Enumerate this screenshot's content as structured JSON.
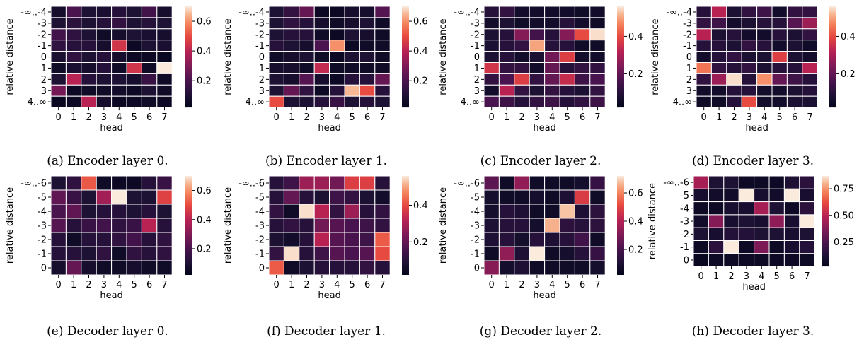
{
  "chart_data": [
    {
      "type": "heatmap",
      "caption": "(a) Encoder layer 0.",
      "xlabel": "head",
      "ylabel": "relative distance",
      "x": [
        "0",
        "1",
        "2",
        "3",
        "4",
        "5",
        "6",
        "7"
      ],
      "y": [
        "-∞..-4",
        "-3",
        "-2",
        "-1",
        "0",
        "1",
        "2",
        "3",
        "4..∞"
      ],
      "colorbar": {
        "ticks": [
          "0.2",
          "0.4",
          "0.6"
        ],
        "tick_values": [
          0.2,
          0.4,
          0.6
        ],
        "vmin": 0.02,
        "vmax": 0.7
      },
      "values": [
        [
          0.08,
          0.2,
          0.1,
          0.09,
          0.12,
          0.1,
          0.18,
          0.08
        ],
        [
          0.1,
          0.13,
          0.1,
          0.12,
          0.15,
          0.1,
          0.12,
          0.1
        ],
        [
          0.18,
          0.14,
          0.1,
          0.06,
          0.08,
          0.1,
          0.09,
          0.08
        ],
        [
          0.14,
          0.12,
          0.12,
          0.08,
          0.45,
          0.05,
          0.1,
          0.09
        ],
        [
          0.09,
          0.14,
          0.1,
          0.12,
          0.08,
          0.05,
          0.05,
          0.04
        ],
        [
          0.06,
          0.09,
          0.08,
          0.12,
          0.06,
          0.45,
          0.06,
          0.7
        ],
        [
          0.1,
          0.4,
          0.12,
          0.1,
          0.1,
          0.08,
          0.16,
          0.06
        ],
        [
          0.28,
          0.05,
          0.06,
          0.06,
          0.07,
          0.05,
          0.1,
          0.06
        ],
        [
          0.04,
          0.05,
          0.4,
          0.08,
          0.05,
          0.05,
          0.06,
          0.05
        ]
      ]
    },
    {
      "type": "heatmap",
      "caption": "(b) Encoder layer 1.",
      "xlabel": "head",
      "ylabel": "relative distance",
      "x": [
        "0",
        "1",
        "2",
        "3",
        "4",
        "5",
        "6",
        "7"
      ],
      "y": [
        "-∞..-4",
        "-3",
        "-2",
        "-1",
        "0",
        "1",
        "2",
        "3",
        "4..∞"
      ],
      "colorbar": {
        "ticks": [
          "0.2",
          "0.4",
          "0.6"
        ],
        "tick_values": [
          0.2,
          0.4,
          0.6
        ],
        "vmin": 0.02,
        "vmax": 0.7
      },
      "values": [
        [
          0.1,
          0.15,
          0.25,
          0.05,
          0.05,
          0.08,
          0.08,
          0.22
        ],
        [
          0.1,
          0.14,
          0.12,
          0.08,
          0.06,
          0.08,
          0.1,
          0.06
        ],
        [
          0.1,
          0.12,
          0.12,
          0.06,
          0.05,
          0.1,
          0.08,
          0.06
        ],
        [
          0.12,
          0.1,
          0.08,
          0.2,
          0.6,
          0.05,
          0.06,
          0.06
        ],
        [
          0.06,
          0.08,
          0.1,
          0.06,
          0.05,
          0.1,
          0.1,
          0.06
        ],
        [
          0.08,
          0.08,
          0.06,
          0.42,
          0.06,
          0.06,
          0.06,
          0.06
        ],
        [
          0.1,
          0.08,
          0.22,
          0.08,
          0.05,
          0.12,
          0.12,
          0.25
        ],
        [
          0.1,
          0.25,
          0.14,
          0.05,
          0.12,
          0.65,
          0.5,
          0.12
        ],
        [
          0.5,
          0.1,
          0.1,
          0.12,
          0.16,
          0.1,
          0.12,
          0.1
        ]
      ]
    },
    {
      "type": "heatmap",
      "caption": "(c) Encoder layer 2.",
      "xlabel": "head",
      "ylabel": "relative distance",
      "x": [
        "0",
        "1",
        "2",
        "3",
        "4",
        "5",
        "6",
        "7"
      ],
      "y": [
        "-∞..-4",
        "-3",
        "-2",
        "-1",
        "0",
        "1",
        "2",
        "3",
        "4..∞"
      ],
      "colorbar": {
        "ticks": [
          "0.2",
          "0.4"
        ],
        "tick_values": [
          0.2,
          0.4
        ],
        "vmin": 0.02,
        "vmax": 0.56
      },
      "values": [
        [
          0.1,
          0.12,
          0.06,
          0.06,
          0.06,
          0.06,
          0.05,
          0.06
        ],
        [
          0.06,
          0.08,
          0.05,
          0.06,
          0.06,
          0.1,
          0.06,
          0.05
        ],
        [
          0.08,
          0.1,
          0.25,
          0.15,
          0.1,
          0.25,
          0.4,
          0.55
        ],
        [
          0.08,
          0.1,
          0.12,
          0.5,
          0.1,
          0.1,
          0.05,
          0.05
        ],
        [
          0.08,
          0.1,
          0.06,
          0.08,
          0.22,
          0.38,
          0.06,
          0.06
        ],
        [
          0.36,
          0.12,
          0.12,
          0.06,
          0.2,
          0.1,
          0.12,
          0.12
        ],
        [
          0.12,
          0.16,
          0.38,
          0.12,
          0.2,
          0.34,
          0.14,
          0.16
        ],
        [
          0.06,
          0.32,
          0.12,
          0.08,
          0.12,
          0.1,
          0.08,
          0.12
        ],
        [
          0.16,
          0.14,
          0.1,
          0.12,
          0.14,
          0.1,
          0.12,
          0.14
        ]
      ]
    },
    {
      "type": "heatmap",
      "caption": "(d) Encoder layer 3.",
      "xlabel": "head",
      "ylabel": "relative distance",
      "x": [
        "0",
        "1",
        "2",
        "3",
        "4",
        "5",
        "6",
        "7"
      ],
      "y": [
        "-∞..-4",
        "-3",
        "-2",
        "-1",
        "0",
        "1",
        "2",
        "3",
        "4..∞"
      ],
      "colorbar": {
        "ticks": [
          "0.2",
          "0.4"
        ],
        "tick_values": [
          0.2,
          0.4
        ],
        "vmin": 0.02,
        "vmax": 0.56
      },
      "values": [
        [
          0.1,
          0.32,
          0.08,
          0.12,
          0.14,
          0.06,
          0.12,
          0.12
        ],
        [
          0.12,
          0.14,
          0.06,
          0.08,
          0.1,
          0.1,
          0.18,
          0.28
        ],
        [
          0.32,
          0.08,
          0.1,
          0.06,
          0.06,
          0.1,
          0.08,
          0.12
        ],
        [
          0.1,
          0.1,
          0.08,
          0.12,
          0.1,
          0.06,
          0.08,
          0.05
        ],
        [
          0.06,
          0.1,
          0.12,
          0.08,
          0.08,
          0.38,
          0.08,
          0.06
        ],
        [
          0.45,
          0.12,
          0.1,
          0.12,
          0.08,
          0.1,
          0.1,
          0.32
        ],
        [
          0.12,
          0.28,
          0.55,
          0.1,
          0.48,
          0.2,
          0.14,
          0.1
        ],
        [
          0.06,
          0.06,
          0.1,
          0.1,
          0.06,
          0.06,
          0.08,
          0.1
        ],
        [
          0.05,
          0.05,
          0.1,
          0.4,
          0.06,
          0.06,
          0.08,
          0.08
        ]
      ]
    },
    {
      "type": "heatmap",
      "caption": "(e) Decoder layer 0.",
      "xlabel": "head",
      "ylabel": "relative distance",
      "x": [
        "0",
        "1",
        "2",
        "3",
        "4",
        "5",
        "6",
        "7"
      ],
      "y": [
        "-∞..-6",
        "-5",
        "-4",
        "-3",
        "-2",
        "-1",
        "0"
      ],
      "colorbar": {
        "ticks": [
          "0.2",
          "0.4",
          "0.6"
        ],
        "tick_values": [
          0.2,
          0.4,
          0.6
        ],
        "vmin": 0.02,
        "vmax": 0.7
      },
      "values": [
        [
          0.1,
          0.14,
          0.52,
          0.06,
          0.05,
          0.05,
          0.12,
          0.16
        ],
        [
          0.24,
          0.16,
          0.1,
          0.36,
          0.7,
          0.1,
          0.1,
          0.48
        ],
        [
          0.2,
          0.24,
          0.1,
          0.12,
          0.12,
          0.1,
          0.12,
          0.1
        ],
        [
          0.22,
          0.12,
          0.16,
          0.18,
          0.14,
          0.16,
          0.4,
          0.12
        ],
        [
          0.12,
          0.06,
          0.12,
          0.12,
          0.14,
          0.18,
          0.12,
          0.14
        ],
        [
          0.12,
          0.12,
          0.1,
          0.14,
          0.06,
          0.14,
          0.12,
          0.14
        ],
        [
          0.08,
          0.25,
          0.08,
          0.06,
          0.06,
          0.08,
          0.06,
          0.06
        ]
      ]
    },
    {
      "type": "heatmap",
      "caption": "(f) Decoder layer 1.",
      "xlabel": "head",
      "ylabel": "relative distance",
      "x": [
        "0",
        "1",
        "2",
        "3",
        "4",
        "5",
        "6",
        "7"
      ],
      "y": [
        "-∞..-6",
        "-5",
        "-4",
        "-3",
        "-2",
        "-1",
        "0"
      ],
      "colorbar": {
        "ticks": [
          "0.2",
          "0.4"
        ],
        "tick_values": [
          0.2,
          0.4
        ],
        "vmin": 0.02,
        "vmax": 0.56
      },
      "values": [
        [
          0.1,
          0.14,
          0.28,
          0.28,
          0.22,
          0.38,
          0.38,
          0.1
        ],
        [
          0.1,
          0.2,
          0.1,
          0.08,
          0.14,
          0.12,
          0.08,
          0.06
        ],
        [
          0.12,
          0.05,
          0.55,
          0.32,
          0.12,
          0.28,
          0.1,
          0.12
        ],
        [
          0.1,
          0.12,
          0.1,
          0.22,
          0.18,
          0.16,
          0.14,
          0.12
        ],
        [
          0.08,
          0.06,
          0.1,
          0.32,
          0.18,
          0.16,
          0.14,
          0.42
        ],
        [
          0.12,
          0.55,
          0.1,
          0.14,
          0.18,
          0.16,
          0.18,
          0.4
        ],
        [
          0.42,
          0.05,
          0.08,
          0.1,
          0.1,
          0.1,
          0.12,
          0.1
        ]
      ]
    },
    {
      "type": "heatmap",
      "caption": "(g) Decoder layer 2.",
      "xlabel": "head",
      "ylabel": "relative distance",
      "x": [
        "0",
        "1",
        "2",
        "3",
        "4",
        "5",
        "6",
        "7"
      ],
      "y": [
        "-∞..-6",
        "-5",
        "-4",
        "-3",
        "-2",
        "-1",
        "0"
      ],
      "colorbar": {
        "ticks": [
          "0.2",
          "0.4",
          "0.6"
        ],
        "tick_values": [
          0.2,
          0.4,
          0.6
        ],
        "vmin": 0.02,
        "vmax": 0.72
      },
      "values": [
        [
          0.24,
          0.06,
          0.34,
          0.06,
          0.06,
          0.06,
          0.08,
          0.16
        ],
        [
          0.08,
          0.06,
          0.06,
          0.08,
          0.06,
          0.1,
          0.48,
          0.06
        ],
        [
          0.08,
          0.12,
          0.1,
          0.06,
          0.06,
          0.68,
          0.1,
          0.14
        ],
        [
          0.1,
          0.12,
          0.12,
          0.08,
          0.66,
          0.14,
          0.12,
          0.14
        ],
        [
          0.1,
          0.12,
          0.08,
          0.12,
          0.1,
          0.12,
          0.18,
          0.06
        ],
        [
          0.06,
          0.34,
          0.1,
          0.72,
          0.06,
          0.08,
          0.12,
          0.16
        ],
        [
          0.32,
          0.08,
          0.1,
          0.06,
          0.06,
          0.06,
          0.06,
          0.08
        ]
      ]
    },
    {
      "type": "heatmap",
      "caption": "(h) Decoder layer 3.",
      "xlabel": "head",
      "ylabel": "relative distance",
      "x": [
        "0",
        "1",
        "2",
        "3",
        "4",
        "5",
        "6",
        "7"
      ],
      "y": [
        "-∞..-6",
        "-5",
        "-4",
        "-3",
        "-2",
        "-1",
        "0"
      ],
      "colorbar": {
        "ticks": [
          "0.25",
          "0.50",
          "0.75"
        ],
        "tick_values": [
          0.25,
          0.5,
          0.75
        ],
        "vmin": 0.02,
        "vmax": 0.87
      },
      "values": [
        [
          0.45,
          0.12,
          0.12,
          0.06,
          0.06,
          0.06,
          0.12,
          0.16
        ],
        [
          0.1,
          0.08,
          0.08,
          0.87,
          0.1,
          0.08,
          0.87,
          0.1
        ],
        [
          0.06,
          0.06,
          0.1,
          0.1,
          0.45,
          0.12,
          0.06,
          0.16
        ],
        [
          0.08,
          0.38,
          0.1,
          0.12,
          0.1,
          0.4,
          0.1,
          0.87
        ],
        [
          0.12,
          0.1,
          0.14,
          0.14,
          0.12,
          0.12,
          0.1,
          0.12
        ],
        [
          0.06,
          0.16,
          0.87,
          0.06,
          0.36,
          0.06,
          0.1,
          0.14
        ],
        [
          0.04,
          0.06,
          0.06,
          0.06,
          0.06,
          0.06,
          0.06,
          0.06
        ]
      ]
    }
  ]
}
